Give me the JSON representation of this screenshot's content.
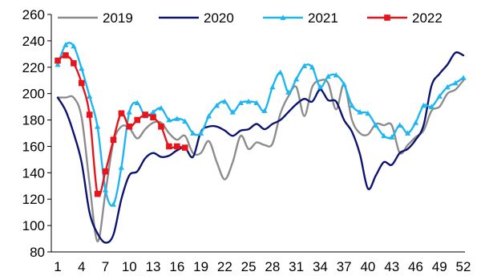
{
  "chart_data": {
    "type": "line",
    "title": "",
    "xlabel": "",
    "ylabel": "",
    "ylim": [
      80,
      260
    ],
    "yticks": [
      80,
      100,
      120,
      140,
      160,
      180,
      200,
      220,
      240,
      260
    ],
    "xlim": [
      1,
      52
    ],
    "xticks": [
      1,
      4,
      7,
      10,
      13,
      16,
      19,
      22,
      25,
      28,
      31,
      34,
      37,
      40,
      43,
      46,
      49,
      52
    ],
    "grid": false,
    "legend_position": "top",
    "series": [
      {
        "name": "2019",
        "color": "#8c8c8c",
        "marker": "none",
        "values": [
          197,
          197,
          197,
          182,
          132,
          88,
          125,
          163,
          175,
          174,
          166,
          173,
          178,
          178,
          170,
          165,
          168,
          155,
          155,
          164,
          148,
          135,
          148,
          168,
          158,
          163,
          161,
          162,
          185,
          198,
          205,
          183,
          205,
          210,
          208,
          188,
          207,
          180,
          170,
          169,
          177,
          176,
          176,
          155,
          161,
          167,
          172,
          187,
          190,
          200,
          203,
          210
        ]
      },
      {
        "name": "2020",
        "color": "#0d1470",
        "marker": "none",
        "values": [
          197,
          187,
          170,
          148,
          110,
          94,
          87,
          93,
          120,
          138,
          141,
          151,
          155,
          152,
          153,
          157,
          159,
          152,
          171,
          175,
          175,
          172,
          168,
          172,
          173,
          177,
          173,
          177,
          180,
          186,
          192,
          196,
          194,
          203,
          195,
          194,
          180,
          171,
          154,
          128,
          138,
          148,
          146,
          155,
          158,
          165,
          176,
          206,
          215,
          222,
          231,
          229
        ]
      },
      {
        "name": "2021",
        "color": "#1eb6f0",
        "marker": "triangle",
        "values": [
          222,
          237,
          236,
          219,
          198,
          175,
          127,
          116,
          144,
          186,
          193,
          183,
          186,
          189,
          180,
          181,
          179,
          170,
          170,
          183,
          191,
          194,
          186,
          193,
          194,
          193,
          187,
          205,
          216,
          201,
          211,
          221,
          220,
          205,
          213,
          214,
          207,
          191,
          186,
          185,
          176,
          168,
          167,
          176,
          170,
          178,
          191,
          190,
          198,
          205,
          208,
          212
        ]
      },
      {
        "name": "2022",
        "color": "#e8141b",
        "marker": "square",
        "values": [
          225,
          229,
          223,
          208,
          184,
          124,
          141,
          165,
          185,
          175,
          180,
          184,
          182,
          175,
          160,
          160,
          159
        ]
      }
    ]
  }
}
